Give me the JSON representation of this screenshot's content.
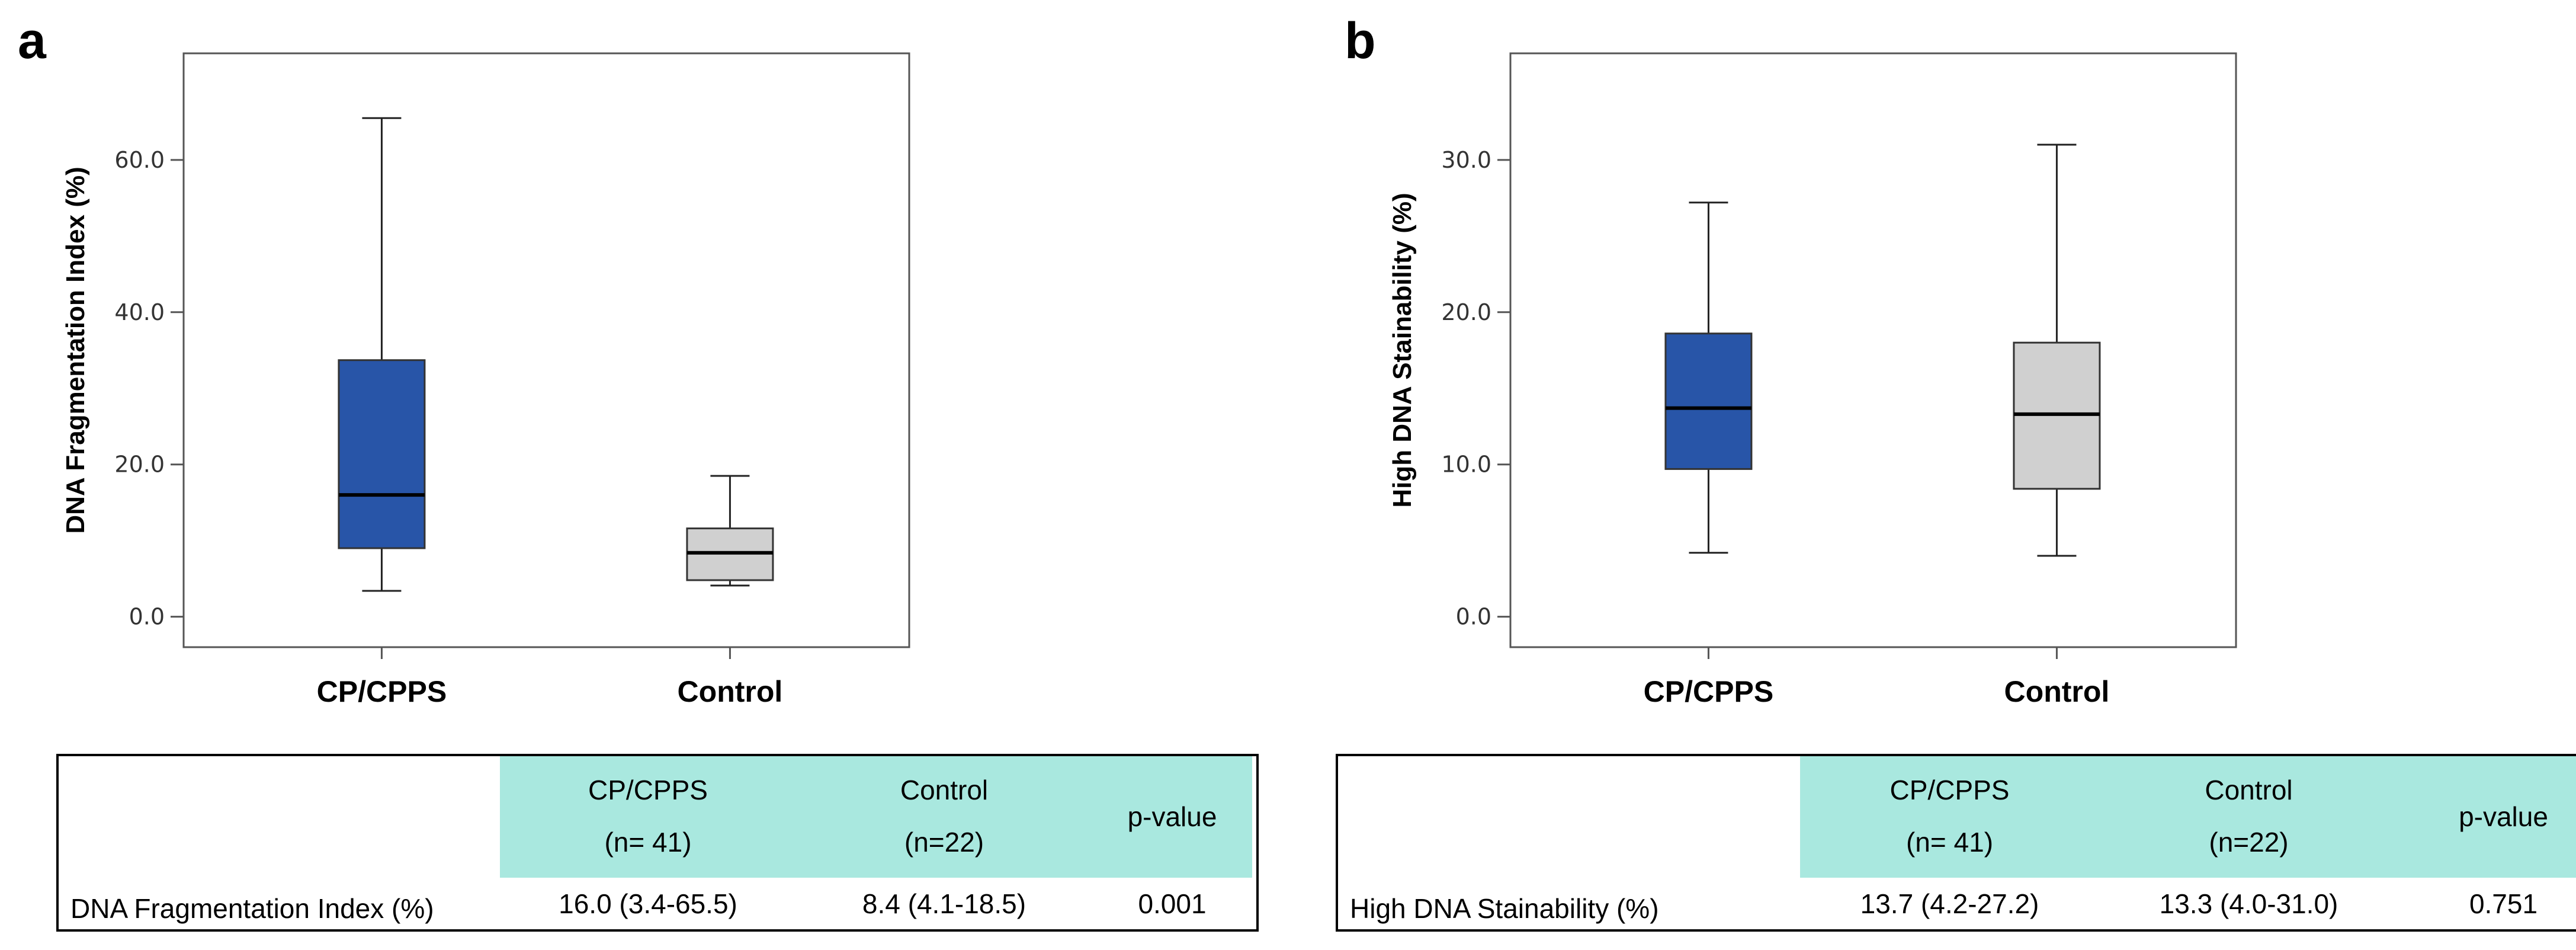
{
  "panels": [
    {
      "letter": "a",
      "y_axis_label": "DNA Fragmentation Index (%)",
      "table": {
        "headers": {
          "group1": "CP/CPPS",
          "group1_n": "(n= 41)",
          "group2": "Control",
          "group2_n": "(n=22)",
          "pvalue": "p-value"
        },
        "row_label": "DNA Fragmentation Index (%)",
        "values": [
          "16.0 (3.4-65.5)",
          "8.4 (4.1-18.5)",
          "0.001"
        ]
      }
    },
    {
      "letter": "b",
      "y_axis_label": "High DNA Stainability (%)",
      "table": {
        "headers": {
          "group1": "CP/CPPS",
          "group1_n": "(n= 41)",
          "group2": "Control",
          "group2_n": "(n=22)",
          "pvalue": "p-value"
        },
        "row_label": "High DNA Stainability (%)",
        "values": [
          "13.7 (4.2-27.2)",
          "13.3 (4.0-31.0)",
          "0.751"
        ]
      }
    }
  ],
  "chart_data": [
    {
      "type": "box",
      "ylabel": "DNA Fragmentation Index (%)",
      "xlabel": "",
      "categories": [
        "CP/CPPS",
        "Control"
      ],
      "ylim": [
        -4,
        74
      ],
      "yticks": [
        0,
        20,
        40,
        60
      ],
      "ytick_labels": [
        "0.0",
        "20.0",
        "40.0",
        "60.0"
      ],
      "boxes": [
        {
          "name": "CP/CPPS",
          "min": 3.4,
          "q1": 9.0,
          "median": 16.0,
          "q3": 33.7,
          "max": 65.5,
          "color": "#2855a8"
        },
        {
          "name": "Control",
          "min": 4.1,
          "q1": 4.8,
          "median": 8.4,
          "q3": 11.6,
          "max": 18.5,
          "color": "#d0d0d0"
        }
      ]
    },
    {
      "type": "box",
      "ylabel": "High DNA Stainability (%)",
      "xlabel": "",
      "categories": [
        "CP/CPPS",
        "Control"
      ],
      "ylim": [
        -2,
        37
      ],
      "yticks": [
        0,
        10,
        20,
        30
      ],
      "ytick_labels": [
        "0.0",
        "10.0",
        "20.0",
        "30.0"
      ],
      "boxes": [
        {
          "name": "CP/CPPS",
          "min": 4.2,
          "q1": 9.7,
          "median": 13.7,
          "q3": 18.6,
          "max": 27.2,
          "color": "#2855a8"
        },
        {
          "name": "Control",
          "min": 4.0,
          "q1": 8.4,
          "median": 13.3,
          "q3": 18.0,
          "max": 31.0,
          "color": "#d0d0d0"
        }
      ]
    }
  ]
}
